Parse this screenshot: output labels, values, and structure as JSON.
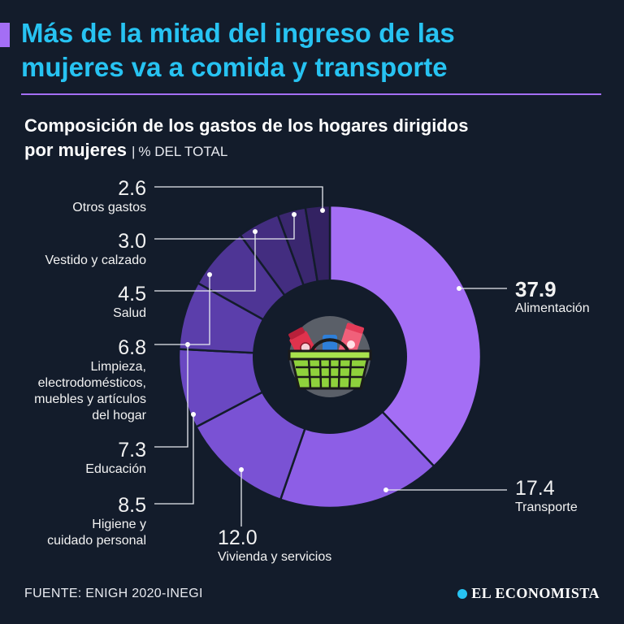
{
  "title_lines": [
    "Más de la mitad del ingreso de las",
    "mujeres va a comida y transporte"
  ],
  "subtitle": {
    "line1": "Composición de los gastos de los hogares dirigidos",
    "line2": "por mujeres",
    "separator": "|",
    "unit": "% DEL TOTAL"
  },
  "chart_data": {
    "type": "pie",
    "donut": true,
    "title": "Composición de los gastos de los hogares dirigidos por mujeres",
    "unit": "% DEL TOTAL",
    "slices": [
      {
        "label": "Alimentación",
        "value": 37.9,
        "value_text": "37.9",
        "color": "#a46ef5"
      },
      {
        "label": "Transporte",
        "value": 17.4,
        "value_text": "17.4",
        "color": "#8d5ee6"
      },
      {
        "label": "Vivienda y servicios",
        "value": 12.0,
        "value_text": "12.0",
        "color": "#7a52d4"
      },
      {
        "label": "Higiene y cuidado personal",
        "value": 8.5,
        "value_text": "8.5",
        "color": "#6a48c2"
      },
      {
        "label": "Educación",
        "value": 7.3,
        "value_text": "7.3",
        "color": "#5b3eab"
      },
      {
        "label": "Limpieza, electrodomésticos, muebles y artículos del hogar",
        "value": 6.8,
        "value_text": "6.8",
        "color": "#4e3595"
      },
      {
        "label": "Salud",
        "value": 4.5,
        "value_text": "4.5",
        "color": "#432d80"
      },
      {
        "label": "Vestido y calzado",
        "value": 3.0,
        "value_text": "3.0",
        "color": "#3a276f"
      },
      {
        "label": "Otros gastos",
        "value": 2.6,
        "value_text": "2.6",
        "color": "#332262"
      }
    ],
    "label_lines": {
      "Alimentación": [
        "Alimentación"
      ],
      "Transporte": [
        "Transporte"
      ],
      "Vivienda y servicios": [
        "Vivienda y servicios"
      ],
      "Higiene y cuidado personal": [
        "Higiene y",
        "cuidado personal"
      ],
      "Educación": [
        "Educación"
      ],
      "Limpieza, electrodomésticos, muebles y artículos del hogar": [
        "Limpieza,",
        "electrodomésticos,",
        "muebles y artículos",
        "del hogar"
      ],
      "Salud": [
        "Salud"
      ],
      "Vestido y calzado": [
        "Vestido y calzado"
      ],
      "Otros gastos": [
        "Otros gastos"
      ]
    },
    "center_icon": "shopping-basket-icon"
  },
  "footer": {
    "source": "FUENTE: ENIGH 2020-INEGI",
    "brand": "EL ECONOMISTA"
  },
  "colors": {
    "background": "#131c2b",
    "title": "#27c3f2",
    "accent": "#a46ef5",
    "donut_hole": "#131c2b",
    "icon_circle": "#5a5f68"
  }
}
